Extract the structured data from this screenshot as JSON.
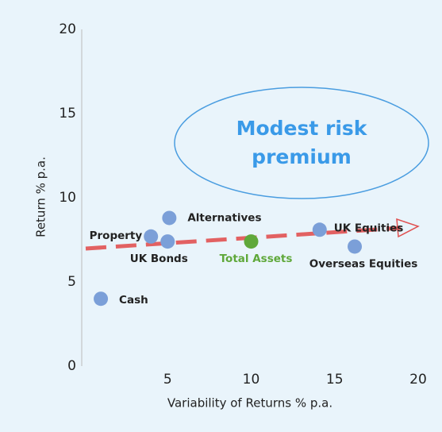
{
  "chart_data": {
    "type": "scatter",
    "x": [
      1,
      4,
      5,
      5.1,
      10,
      14.1,
      16.2
    ],
    "values": [
      4,
      7.7,
      7.4,
      8.8,
      7.4,
      8.1,
      7.1
    ],
    "labels": [
      "Cash",
      "Property",
      "UK Bonds",
      "Alternatives",
      "Total Assets",
      "UK Equities",
      "Overseas Equities"
    ],
    "colors": [
      "#7b9fd8",
      "#7b9fd8",
      "#7b9fd8",
      "#7b9fd8",
      "#5fa83a",
      "#7b9fd8",
      "#7b9fd8"
    ],
    "label_colors": [
      "#222222",
      "#222222",
      "#222222",
      "#222222",
      "#5fa83a",
      "#222222",
      "#222222"
    ],
    "xlabel": "Variability of Returns % p.a.",
    "ylabel": "Return % p.a.",
    "annotation": [
      "Modest risk",
      "premium"
    ],
    "xlim": [
      0,
      20
    ],
    "xticks": [
      5,
      10,
      15,
      20
    ],
    "ylim": [
      0,
      20
    ],
    "yticks": [
      0,
      5,
      10,
      15,
      20
    ]
  }
}
